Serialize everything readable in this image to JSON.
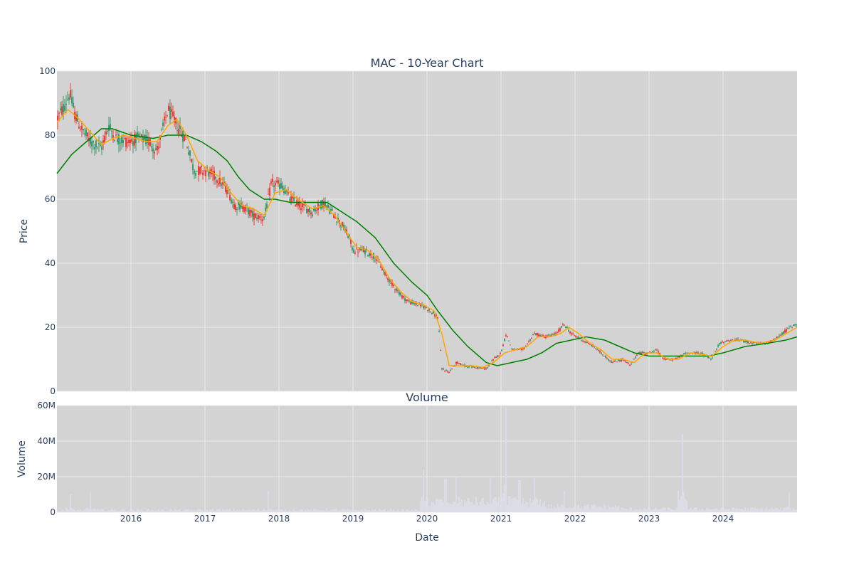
{
  "colors": {
    "panel_bg": "#d3d3d3",
    "grid": "#ebebeb",
    "text": "#2a3f5f",
    "up": "#3d9970",
    "down": "#e8413a",
    "ma_short": "#ffa500",
    "ma_long": "#008000",
    "volume": "#dcdce8"
  },
  "chart_data": [
    {
      "type": "candlestick",
      "title": "MAC - 10-Year Chart",
      "ylabel": "Price",
      "ylim": [
        0,
        100
      ],
      "yticks": [
        0,
        20,
        40,
        60,
        80,
        100
      ],
      "xlim": [
        2015.0,
        2025.0
      ],
      "series": [
        {
          "style": "candlestick",
          "price_path_approx": [
            [
              2015.0,
              85
            ],
            [
              2015.1,
              89
            ],
            [
              2015.17,
              93
            ],
            [
              2015.25,
              86
            ],
            [
              2015.33,
              82
            ],
            [
              2015.45,
              78
            ],
            [
              2015.6,
              76
            ],
            [
              2015.7,
              83
            ],
            [
              2015.8,
              79
            ],
            [
              2015.95,
              78
            ],
            [
              2016.1,
              79
            ],
            [
              2016.25,
              78
            ],
            [
              2016.35,
              75
            ],
            [
              2016.5,
              88
            ],
            [
              2016.6,
              84
            ],
            [
              2016.75,
              78
            ],
            [
              2016.85,
              69
            ],
            [
              2017.0,
              69
            ],
            [
              2017.15,
              67
            ],
            [
              2017.3,
              63
            ],
            [
              2017.4,
              58
            ],
            [
              2017.5,
              58
            ],
            [
              2017.65,
              55
            ],
            [
              2017.8,
              54
            ],
            [
              2017.9,
              65
            ],
            [
              2018.05,
              64
            ],
            [
              2018.15,
              60
            ],
            [
              2018.3,
              58
            ],
            [
              2018.45,
              56
            ],
            [
              2018.6,
              59
            ],
            [
              2018.75,
              55
            ],
            [
              2018.85,
              52
            ],
            [
              2018.95,
              48
            ],
            [
              2019.0,
              44
            ],
            [
              2019.15,
              44
            ],
            [
              2019.3,
              42
            ],
            [
              2019.45,
              36
            ],
            [
              2019.55,
              33
            ],
            [
              2019.65,
              30
            ],
            [
              2019.75,
              28
            ],
            [
              2019.9,
              27
            ],
            [
              2020.0,
              26
            ],
            [
              2020.15,
              23
            ],
            [
              2020.2,
              7
            ],
            [
              2020.3,
              6
            ],
            [
              2020.4,
              9
            ],
            [
              2020.5,
              8
            ],
            [
              2020.65,
              7.5
            ],
            [
              2020.8,
              7
            ],
            [
              2020.9,
              10
            ],
            [
              2021.0,
              12
            ],
            [
              2021.07,
              18
            ],
            [
              2021.15,
              13
            ],
            [
              2021.3,
              13
            ],
            [
              2021.45,
              18
            ],
            [
              2021.6,
              17
            ],
            [
              2021.75,
              18
            ],
            [
              2021.85,
              21
            ],
            [
              2021.95,
              18
            ],
            [
              2022.1,
              16
            ],
            [
              2022.25,
              14
            ],
            [
              2022.4,
              11
            ],
            [
              2022.5,
              9
            ],
            [
              2022.65,
              10
            ],
            [
              2022.75,
              8
            ],
            [
              2022.85,
              12
            ],
            [
              2023.0,
              12
            ],
            [
              2023.1,
              13
            ],
            [
              2023.2,
              10
            ],
            [
              2023.35,
              10
            ],
            [
              2023.5,
              12
            ],
            [
              2023.7,
              12
            ],
            [
              2023.85,
              10
            ],
            [
              2023.95,
              15
            ],
            [
              2024.1,
              16
            ],
            [
              2024.25,
              16
            ],
            [
              2024.4,
              15
            ],
            [
              2024.6,
              15
            ],
            [
              2024.75,
              17
            ],
            [
              2024.9,
              20
            ],
            [
              2025.0,
              21
            ]
          ]
        },
        {
          "style": "line",
          "color": "#ffa500",
          "points": [
            [
              2015.0,
              84
            ],
            [
              2015.15,
              88
            ],
            [
              2015.3,
              85
            ],
            [
              2015.45,
              81
            ],
            [
              2015.6,
              77
            ],
            [
              2015.75,
              79
            ],
            [
              2015.9,
              80
            ],
            [
              2016.05,
              79
            ],
            [
              2016.2,
              78
            ],
            [
              2016.35,
              78
            ],
            [
              2016.5,
              83
            ],
            [
              2016.62,
              85
            ],
            [
              2016.75,
              80
            ],
            [
              2016.9,
              72
            ],
            [
              2017.05,
              69
            ],
            [
              2017.2,
              67
            ],
            [
              2017.35,
              62
            ],
            [
              2017.5,
              58
            ],
            [
              2017.65,
              57
            ],
            [
              2017.8,
              55
            ],
            [
              2017.95,
              62
            ],
            [
              2018.1,
              63
            ],
            [
              2018.25,
              60
            ],
            [
              2018.45,
              57
            ],
            [
              2018.6,
              58
            ],
            [
              2018.75,
              55
            ],
            [
              2018.9,
              50
            ],
            [
              2019.05,
              45
            ],
            [
              2019.2,
              44
            ],
            [
              2019.35,
              41
            ],
            [
              2019.5,
              35
            ],
            [
              2019.65,
              31
            ],
            [
              2019.8,
              28
            ],
            [
              2019.95,
              27
            ],
            [
              2020.1,
              25
            ],
            [
              2020.2,
              18
            ],
            [
              2020.3,
              8
            ],
            [
              2020.45,
              8
            ],
            [
              2020.6,
              8
            ],
            [
              2020.75,
              7.5
            ],
            [
              2020.9,
              9
            ],
            [
              2021.05,
              12
            ],
            [
              2021.2,
              13
            ],
            [
              2021.35,
              14
            ],
            [
              2021.5,
              17
            ],
            [
              2021.65,
              17
            ],
            [
              2021.8,
              18
            ],
            [
              2021.92,
              20
            ],
            [
              2022.05,
              18
            ],
            [
              2022.2,
              15
            ],
            [
              2022.35,
              13
            ],
            [
              2022.5,
              10
            ],
            [
              2022.65,
              10
            ],
            [
              2022.8,
              9
            ],
            [
              2022.95,
              12
            ],
            [
              2023.1,
              12
            ],
            [
              2023.25,
              10
            ],
            [
              2023.4,
              10
            ],
            [
              2023.55,
              12
            ],
            [
              2023.7,
              11.5
            ],
            [
              2023.85,
              11
            ],
            [
              2024.0,
              14
            ],
            [
              2024.15,
              16
            ],
            [
              2024.3,
              16
            ],
            [
              2024.5,
              15
            ],
            [
              2024.7,
              16
            ],
            [
              2024.85,
              18
            ],
            [
              2025.0,
              20
            ]
          ]
        },
        {
          "style": "line",
          "color": "#008000",
          "points": [
            [
              2015.0,
              68
            ],
            [
              2015.1,
              71
            ],
            [
              2015.2,
              74
            ],
            [
              2015.4,
              78
            ],
            [
              2015.6,
              82
            ],
            [
              2015.75,
              82
            ],
            [
              2016.0,
              80
            ],
            [
              2016.3,
              79
            ],
            [
              2016.5,
              80
            ],
            [
              2016.75,
              80
            ],
            [
              2016.95,
              78
            ],
            [
              2017.15,
              75
            ],
            [
              2017.3,
              72
            ],
            [
              2017.45,
              67
            ],
            [
              2017.6,
              63
            ],
            [
              2017.8,
              60
            ],
            [
              2017.95,
              60
            ],
            [
              2018.15,
              59
            ],
            [
              2018.35,
              59
            ],
            [
              2018.5,
              59
            ],
            [
              2018.65,
              59
            ],
            [
              2018.85,
              56
            ],
            [
              2019.05,
              53
            ],
            [
              2019.3,
              48
            ],
            [
              2019.55,
              40
            ],
            [
              2019.8,
              34
            ],
            [
              2020.0,
              30
            ],
            [
              2020.15,
              25
            ],
            [
              2020.35,
              19
            ],
            [
              2020.55,
              14
            ],
            [
              2020.8,
              9
            ],
            [
              2020.95,
              8
            ],
            [
              2021.15,
              9
            ],
            [
              2021.35,
              10
            ],
            [
              2021.55,
              12
            ],
            [
              2021.75,
              15
            ],
            [
              2021.95,
              16
            ],
            [
              2022.15,
              17
            ],
            [
              2022.4,
              16
            ],
            [
              2022.6,
              14
            ],
            [
              2022.8,
              12
            ],
            [
              2023.0,
              11
            ],
            [
              2023.2,
              11
            ],
            [
              2023.5,
              11
            ],
            [
              2023.8,
              11
            ],
            [
              2024.0,
              12
            ],
            [
              2024.3,
              14
            ],
            [
              2024.6,
              15
            ],
            [
              2024.85,
              16
            ],
            [
              2025.0,
              17
            ]
          ]
        }
      ]
    },
    {
      "type": "bar",
      "title": "Volume",
      "ylabel": "Volume",
      "xlabel": "Date",
      "ylim": [
        0,
        60000000
      ],
      "ytick_labels": [
        "0",
        "20M",
        "40M",
        "60M"
      ],
      "yticks": [
        0,
        20000000,
        40000000,
        60000000
      ],
      "xticks": [
        2016,
        2017,
        2018,
        2019,
        2020,
        2021,
        2022,
        2023,
        2024
      ],
      "xtick_labels": [
        "2016",
        "2017",
        "2018",
        "2019",
        "2020",
        "2021",
        "2022",
        "2023",
        "2024"
      ],
      "spikes_approx": [
        [
          2015.18,
          10000000
        ],
        [
          2015.45,
          11000000
        ],
        [
          2017.85,
          12000000
        ],
        [
          2019.95,
          24000000
        ],
        [
          2020.25,
          19000000
        ],
        [
          2020.4,
          20000000
        ],
        [
          2020.85,
          19000000
        ],
        [
          2021.07,
          59000000
        ],
        [
          2021.25,
          18000000
        ],
        [
          2021.45,
          19000000
        ],
        [
          2021.85,
          12000000
        ],
        [
          2023.45,
          44000000
        ],
        [
          2024.9,
          11000000
        ]
      ]
    }
  ]
}
